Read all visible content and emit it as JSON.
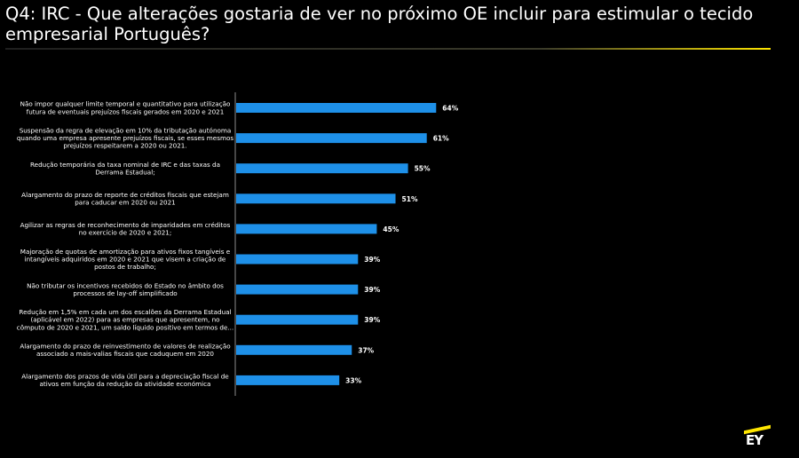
{
  "title": "Q4: IRC - Que alterações gostaria de ver no próximo OE incluir para estimular o tecido empresarial Português?",
  "colors": {
    "bar": "#1e90e8",
    "background": "#000000",
    "text": "#ffffff",
    "accent": "#ffe600"
  },
  "logo": {
    "text": "EY"
  },
  "chart_data": {
    "type": "bar",
    "orientation": "horizontal",
    "categories": [
      [
        "Não impor qualquer limite temporal e quantitativo para utilização",
        "futura de eventuais prejuízos fiscais gerados em 2020 e 2021"
      ],
      [
        "Suspensão da regra de elevação em 10% da tributação autónoma",
        "quando uma empresa apresente prejuízos fiscais, se esses mesmos",
        "prejuízos respeitarem a 2020 ou 2021."
      ],
      [
        "Redução temporária da taxa nominal de IRC e das taxas da",
        "Derrama Estadual;"
      ],
      [
        "Alargamento do prazo de reporte de créditos fiscais que estejam",
        "para caducar em 2020 ou 2021"
      ],
      [
        "Agilizar as regras de reconhecimento de imparidades em créditos",
        "no exercício de 2020 e 2021;"
      ],
      [
        "Majoração de quotas de amortização para ativos fixos tangíveis e",
        "intangíveis adquiridos em 2020 e 2021 que visem a criação de",
        "postos de trabalho;"
      ],
      [
        "Não tributar os incentivos recebidos do Estado no âmbito dos",
        "processos de lay-off simplificado"
      ],
      [
        "Redução em 1,5% em cada um dos escalões da Derrama Estadual",
        "(aplicável em 2022) para as empresas que apresentem, no",
        "cômputo de 2020 e 2021, um saldo líquido positivo em termos de..."
      ],
      [
        "Alargamento do prazo de reinvestimento de valores de realização",
        "associado a mais-valias fiscais que caduquem em 2020"
      ],
      [
        "Alargamento dos prazos de vida útil para a depreciação fiscal de",
        "ativos em função da redução da atividade económica"
      ]
    ],
    "values": [
      64,
      61,
      55,
      51,
      45,
      39,
      39,
      39,
      37,
      33
    ],
    "value_labels": [
      "64%",
      "61%",
      "55%",
      "51%",
      "45%",
      "39%",
      "39%",
      "39%",
      "37%",
      "33%"
    ],
    "unit": "%"
  }
}
